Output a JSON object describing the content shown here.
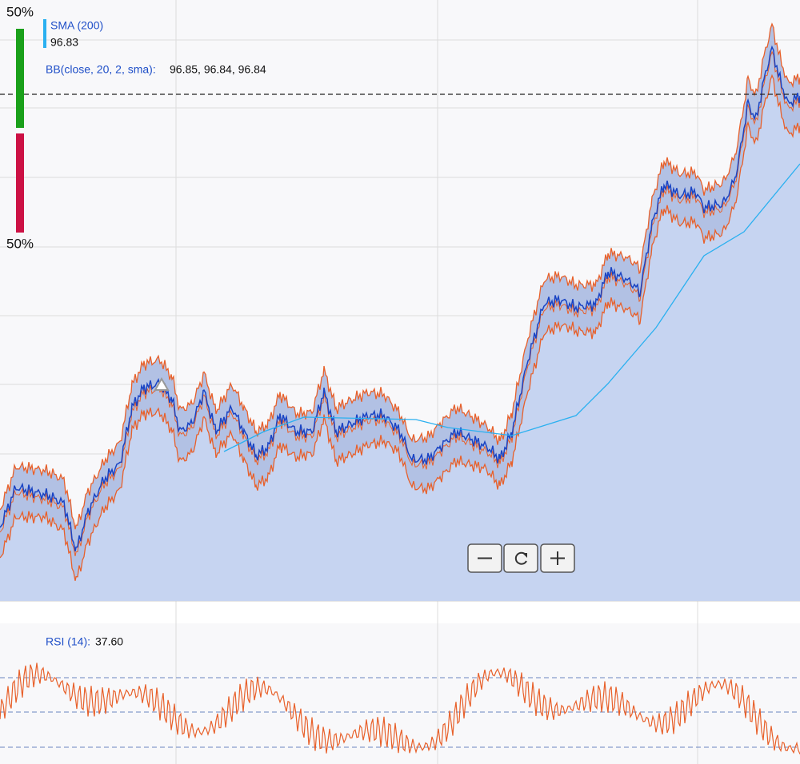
{
  "depth_bar": {
    "top_label": "50%",
    "bottom_label": "50%"
  },
  "sma": {
    "label": "SMA (200)",
    "value": "96.83"
  },
  "bb": {
    "label": "BB(close, 20, 2, sma):",
    "values": "96.85, 96.84, 96.84"
  },
  "rsi": {
    "label": "RSI (14):",
    "value": "37.60"
  }
}
